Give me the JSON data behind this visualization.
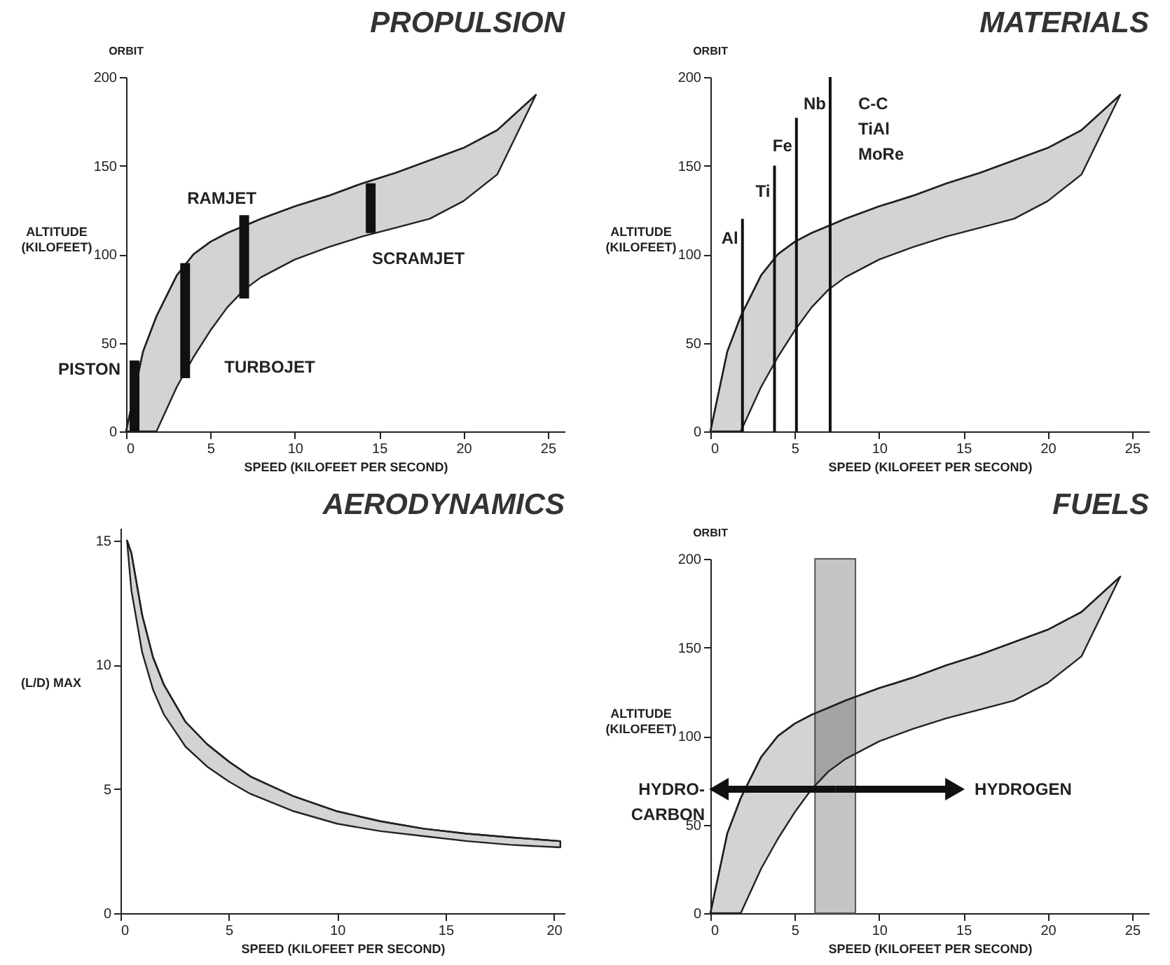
{
  "chart_data": [
    {
      "type": "line",
      "title": "PROPULSION",
      "xlabel": "SPEED (KILOFEET PER SECOND)",
      "ylabel": "ALTITUDE (KILOFEET)",
      "xlim": [
        0,
        26
      ],
      "xticks": [
        0,
        5,
        10,
        15,
        20,
        25
      ],
      "ylim": [
        0,
        200
      ],
      "yticks": [
        0,
        50,
        100,
        150,
        200
      ],
      "series": [
        {
          "color": "#222222",
          "x": [
            0,
            1,
            1.8,
            3,
            4,
            5,
            6,
            7,
            8,
            10,
            12,
            14,
            16,
            18,
            20,
            22,
            24.3
          ],
          "values": [
            0,
            45,
            65,
            88,
            100,
            107,
            112,
            116,
            120,
            127,
            133,
            140,
            146,
            153,
            160,
            170,
            190
          ],
          "upper": [
            0,
            45,
            65,
            88,
            100,
            107,
            112,
            116,
            120,
            127,
            133,
            140,
            146,
            153,
            160,
            170,
            190
          ],
          "lower": [
            0,
            0,
            0,
            25,
            42,
            57,
            70,
            80,
            87,
            97,
            104,
            110,
            115,
            120,
            130,
            145,
            190
          ]
        },
        {
          "type": "bar",
          "color": "#111111",
          "x": [
            0.5,
            3.5,
            7,
            14.5
          ],
          "values": [
            40,
            65,
            47,
            28
          ],
          "base": [
            0,
            30,
            75,
            112
          ]
        }
      ],
      "annotations": [
        "ORBIT",
        {
          "text": "PISTON",
          "x": 0.5,
          "y": 40
        },
        {
          "text": "TURBOJET",
          "x": 3.5,
          "y": 30
        },
        {
          "text": "RAMJET",
          "x": 7,
          "y": 122
        },
        {
          "text": "SCRAMJET",
          "x": 14.5,
          "y": 112
        }
      ]
    },
    {
      "type": "line",
      "title": "MATERIALS",
      "xlabel": "SPEED (KILOFEET PER SECOND)",
      "ylabel": "ALTITUDE (KILOFEET)",
      "xlim": [
        0,
        26
      ],
      "xticks": [
        0,
        5,
        10,
        15,
        20,
        25
      ],
      "ylim": [
        0,
        200
      ],
      "yticks": [
        0,
        50,
        100,
        150,
        200
      ],
      "series": [
        {
          "color": "#222222",
          "x": [
            0,
            1,
            1.8,
            3,
            4,
            5,
            6,
            7,
            8,
            10,
            12,
            14,
            16,
            18,
            20,
            22,
            24.3
          ],
          "values": [
            0,
            45,
            65,
            88,
            100,
            107,
            112,
            116,
            120,
            127,
            133,
            140,
            146,
            153,
            160,
            170,
            190
          ],
          "upper": [
            0,
            45,
            65,
            88,
            100,
            107,
            112,
            116,
            120,
            127,
            133,
            140,
            146,
            153,
            160,
            170,
            190
          ],
          "lower": [
            0,
            0,
            0,
            25,
            42,
            57,
            70,
            80,
            87,
            97,
            104,
            110,
            115,
            120,
            130,
            145,
            190
          ]
        },
        {
          "type": "bar",
          "color": "#111111",
          "x": [
            1.9,
            3.8,
            5.1,
            7.1
          ],
          "values": [
            120,
            150,
            177,
            200
          ]
        }
      ],
      "annotations": [
        "ORBIT",
        {
          "text": "Al",
          "x": 1.9,
          "y": 120
        },
        {
          "text": "Ti",
          "x": 3.8,
          "y": 150
        },
        {
          "text": "Fe",
          "x": 5.1,
          "y": 177
        },
        {
          "text": "Nb",
          "x": 7.1,
          "y": 200
        },
        {
          "text": "C-C TiAl MoRe",
          "x": 7.1,
          "y": 200
        }
      ]
    },
    {
      "type": "line",
      "title": "AERODYNAMICS",
      "xlabel": "SPEED (KILOFEET PER SECOND)",
      "ylabel": "(L/D) MAX",
      "xlim": [
        0,
        20.5
      ],
      "xticks": [
        0,
        5,
        10,
        15,
        20
      ],
      "ylim": [
        0,
        15.5
      ],
      "yticks": [
        0,
        5,
        10,
        15
      ],
      "series": [
        {
          "color": "#222222",
          "x": [
            0.3,
            0.5,
            1,
            1.5,
            2,
            3,
            4,
            5,
            6,
            8,
            10,
            12,
            14,
            16,
            18,
            20.3
          ],
          "values": [
            15,
            14.5,
            12,
            10.3,
            9.2,
            7.7,
            6.8,
            6.1,
            5.5,
            4.7,
            4.1,
            3.7,
            3.4,
            3.2,
            3.05,
            2.9
          ],
          "upper": [
            15,
            14.5,
            12,
            10.3,
            9.2,
            7.7,
            6.8,
            6.1,
            5.5,
            4.7,
            4.1,
            3.7,
            3.4,
            3.2,
            3.05,
            2.9
          ],
          "lower": [
            15,
            13,
            10.5,
            9,
            8,
            6.7,
            5.9,
            5.3,
            4.8,
            4.1,
            3.6,
            3.3,
            3.1,
            2.9,
            2.75,
            2.65
          ]
        }
      ]
    },
    {
      "type": "line",
      "title": "FUELS",
      "xlabel": "SPEED (KILOFEET PER SECOND)",
      "ylabel": "ALTITUDE (KILOFEET)",
      "xlim": [
        0,
        26
      ],
      "xticks": [
        0,
        5,
        10,
        15,
        20,
        25
      ],
      "ylim": [
        0,
        200
      ],
      "yticks": [
        0,
        50,
        100,
        150,
        200
      ],
      "series": [
        {
          "color": "#222222",
          "x": [
            0,
            1,
            1.8,
            3,
            4,
            5,
            6,
            7,
            8,
            10,
            12,
            14,
            16,
            18,
            20,
            22,
            24.3
          ],
          "values": [
            0,
            45,
            65,
            88,
            100,
            107,
            112,
            116,
            120,
            127,
            133,
            140,
            146,
            153,
            160,
            170,
            190
          ],
          "upper": [
            0,
            45,
            65,
            88,
            100,
            107,
            112,
            116,
            120,
            127,
            133,
            140,
            146,
            153,
            160,
            170,
            190
          ],
          "lower": [
            0,
            0,
            0,
            25,
            42,
            57,
            70,
            80,
            87,
            97,
            104,
            110,
            115,
            120,
            130,
            145,
            190
          ]
        }
      ],
      "bands": [
        {
          "axis": "x",
          "from": 6.2,
          "to": 8.6,
          "color": "#555555"
        }
      ],
      "annotations": [
        "ORBIT",
        {
          "text": "HYDRO-CARBON",
          "x": 0.5,
          "y": 70
        },
        {
          "text": "HYDROGEN",
          "x": 14.5,
          "y": 70
        }
      ]
    }
  ]
}
